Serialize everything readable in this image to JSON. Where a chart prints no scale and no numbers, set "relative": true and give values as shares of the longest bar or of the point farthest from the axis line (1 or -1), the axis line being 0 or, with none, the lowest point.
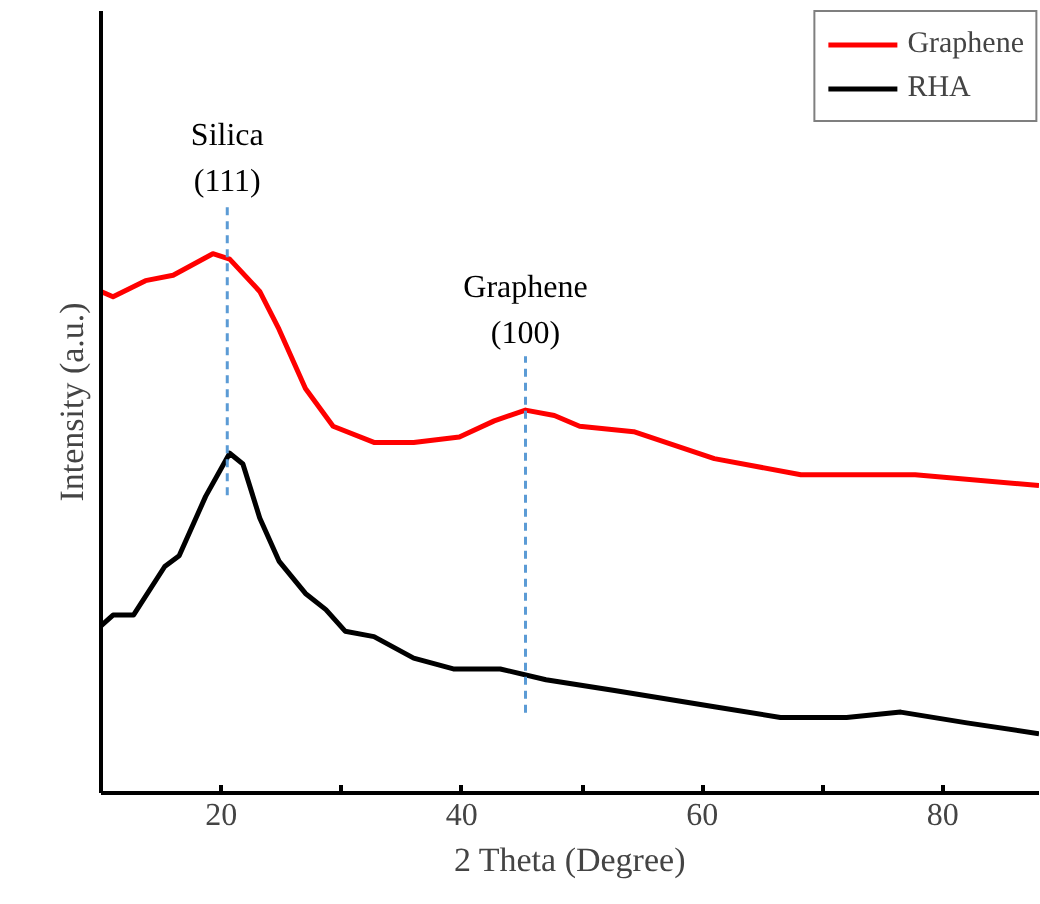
{
  "chart_data": {
    "type": "line",
    "relative": true,
    "xlabel": "2 Theta (Degree)",
    "ylabel": "Intensity (a.u.)",
    "xlim": [
      10,
      88
    ],
    "xticks": [
      {
        "value": 10,
        "label": null
      },
      20,
      {
        "value": 30,
        "label": null
      },
      40,
      {
        "value": 50,
        "label": null
      },
      60,
      {
        "value": 70,
        "label": null
      },
      80
    ],
    "legend": "top right",
    "grid": false,
    "marker": "none",
    "line_style": "solid",
    "series": [
      {
        "name": "Graphene",
        "color": "#ff0000",
        "x": [
          10,
          11,
          13.7,
          16,
          19.3,
          20.7,
          23.2,
          24.8,
          27,
          29.3,
          32.7,
          36,
          39.8,
          42.7,
          45.3,
          47.7,
          49.8,
          54.3,
          61,
          68.2,
          77.7,
          88
        ],
        "values": [
          0.93,
          0.92,
          0.95,
          0.96,
          1.0,
          0.99,
          0.93,
          0.86,
          0.75,
          0.68,
          0.65,
          0.65,
          0.66,
          0.69,
          0.71,
          0.7,
          0.68,
          0.67,
          0.62,
          0.59,
          0.59,
          0.57
        ]
      },
      {
        "name": "RHA",
        "color": "#000000",
        "x": [
          10,
          11,
          12.7,
          15.3,
          16.5,
          18.7,
          20.7,
          21.8,
          23.2,
          24.8,
          27,
          28.7,
          30.3,
          32.7,
          36,
          39.3,
          43.2,
          47,
          52.7,
          61,
          66.5,
          72,
          76.5,
          82,
          88
        ],
        "values": [
          0.31,
          0.33,
          0.33,
          0.42,
          0.44,
          0.55,
          0.63,
          0.61,
          0.51,
          0.43,
          0.37,
          0.34,
          0.3,
          0.29,
          0.25,
          0.23,
          0.23,
          0.21,
          0.19,
          0.16,
          0.14,
          0.14,
          0.15,
          0.13,
          0.11
        ]
      }
    ],
    "ref_lines": [
      {
        "axis": "x",
        "value": 20.5,
        "label": "Silica\n(111)",
        "color": "#5b9bd5",
        "line_style": "dashed"
      },
      {
        "axis": "x",
        "value": 45.3,
        "label": "Graphene\n(100)",
        "color": "#5b9bd5",
        "line_style": "dashed"
      }
    ]
  }
}
